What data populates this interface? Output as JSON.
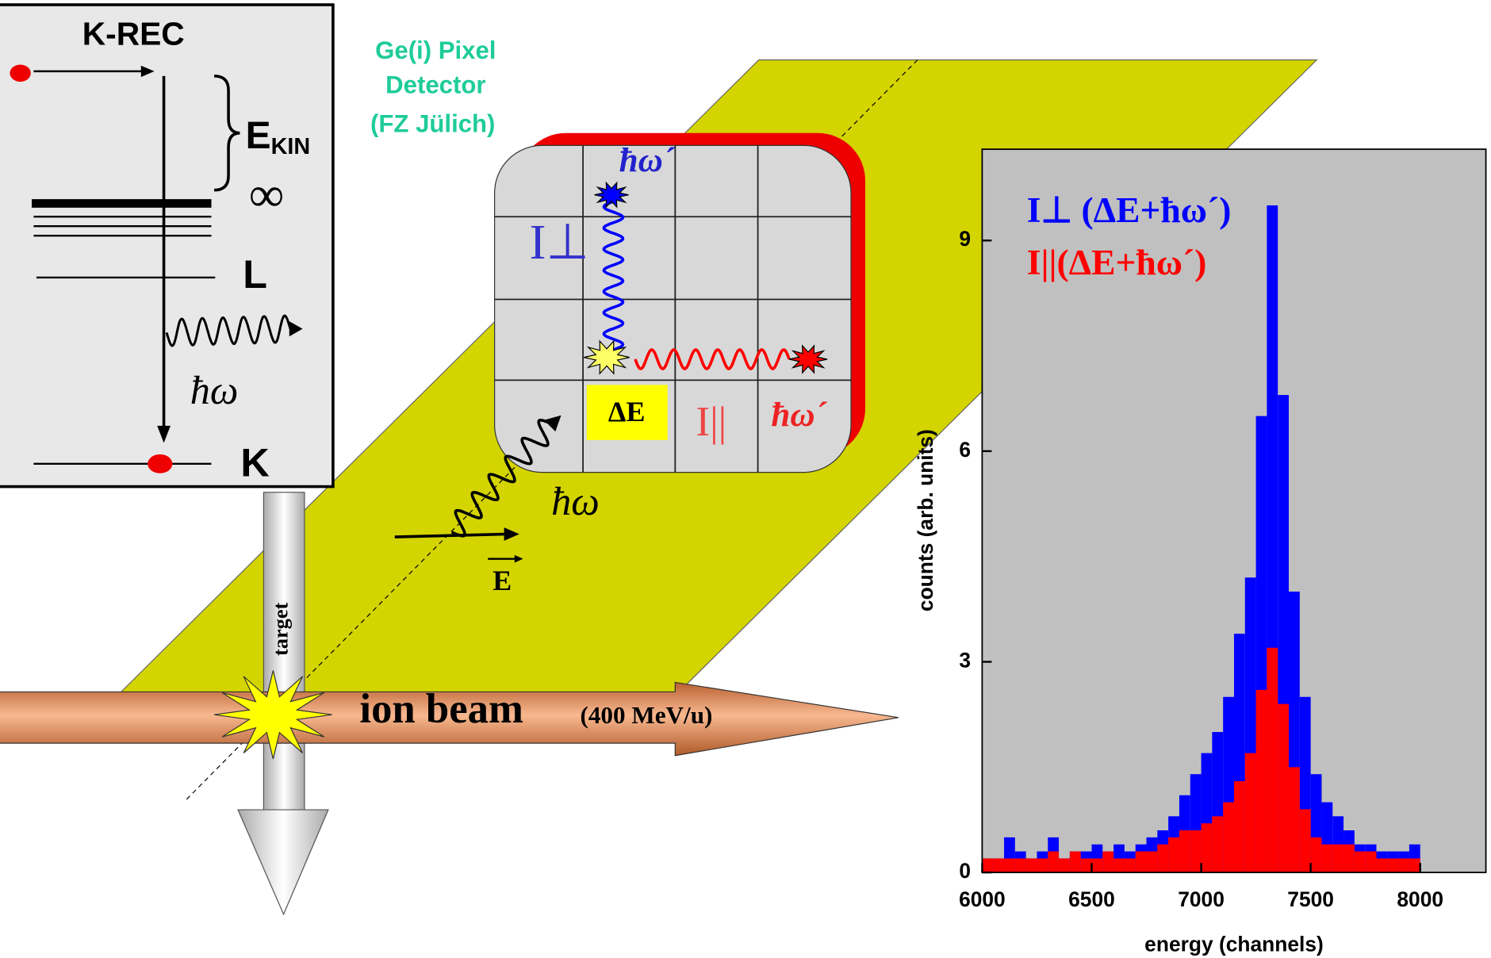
{
  "k_rec": {
    "title": "K-REC",
    "ekin": "E",
    "ekin_sub": "KIN",
    "infinity": "∞",
    "l_level": "L",
    "photon": "ħω",
    "k_level": "K"
  },
  "detector": {
    "label_lines": [
      "Ge(i) Pixel",
      "Detector",
      "(FZ Jülich)"
    ],
    "photon_perp": "ħω´",
    "i_perp": "I⊥",
    "delta_e": "ΔE",
    "i_par": "I||",
    "photon_par": "ħω´"
  },
  "incoming": {
    "photon": "ħω",
    "field": "E"
  },
  "target": "target",
  "beam": {
    "label": "ion beam",
    "energy": "(400 MeV/u)"
  },
  "chart_data": {
    "type": "histogram",
    "x_label": "energy (channels)",
    "y_label": "counts (arb. units)",
    "bins": [
      6000,
      6050,
      6100,
      6150,
      6200,
      6250,
      6300,
      6350,
      6400,
      6450,
      6500,
      6550,
      6600,
      6650,
      6700,
      6750,
      6800,
      6850,
      6900,
      6950,
      7000,
      7050,
      7100,
      7150,
      7200,
      7250,
      7300,
      7350,
      7400,
      7450,
      7500,
      7550,
      7600,
      7650,
      7700,
      7750,
      7800,
      7850,
      7900,
      7950,
      8000
    ],
    "series": [
      {
        "name": "I⊥ (ΔE+ħω´)",
        "color": "#0000ff",
        "values": [
          0.2,
          0.2,
          0.5,
          0.3,
          0.2,
          0.3,
          0.5,
          0.2,
          0.3,
          0.3,
          0.4,
          0.3,
          0.4,
          0.3,
          0.4,
          0.5,
          0.6,
          0.8,
          1.1,
          1.4,
          1.7,
          2.0,
          2.5,
          3.4,
          4.2,
          6.5,
          9.5,
          6.8,
          4.0,
          2.5,
          1.4,
          1.0,
          0.8,
          0.6,
          0.4,
          0.4,
          0.3,
          0.3,
          0.3,
          0.4
        ]
      },
      {
        "name": "I||(ΔE+ħω´)",
        "color": "#ff0000",
        "values": [
          0.2,
          0.2,
          0.2,
          0.2,
          0.2,
          0.2,
          0.3,
          0.2,
          0.3,
          0.2,
          0.2,
          0.3,
          0.2,
          0.2,
          0.3,
          0.3,
          0.4,
          0.5,
          0.6,
          0.6,
          0.7,
          0.8,
          1.0,
          1.3,
          1.7,
          2.6,
          3.2,
          2.4,
          1.5,
          0.9,
          0.5,
          0.4,
          0.4,
          0.4,
          0.3,
          0.3,
          0.2,
          0.2,
          0.2,
          0.2
        ]
      }
    ],
    "xlim": [
      6000,
      8300
    ],
    "ylim": [
      0,
      10.3
    ],
    "xticks": [
      6000,
      6500,
      7000,
      7500,
      8000
    ],
    "yticks": [
      0,
      3,
      6,
      9
    ],
    "background": "#c0c0c0"
  }
}
